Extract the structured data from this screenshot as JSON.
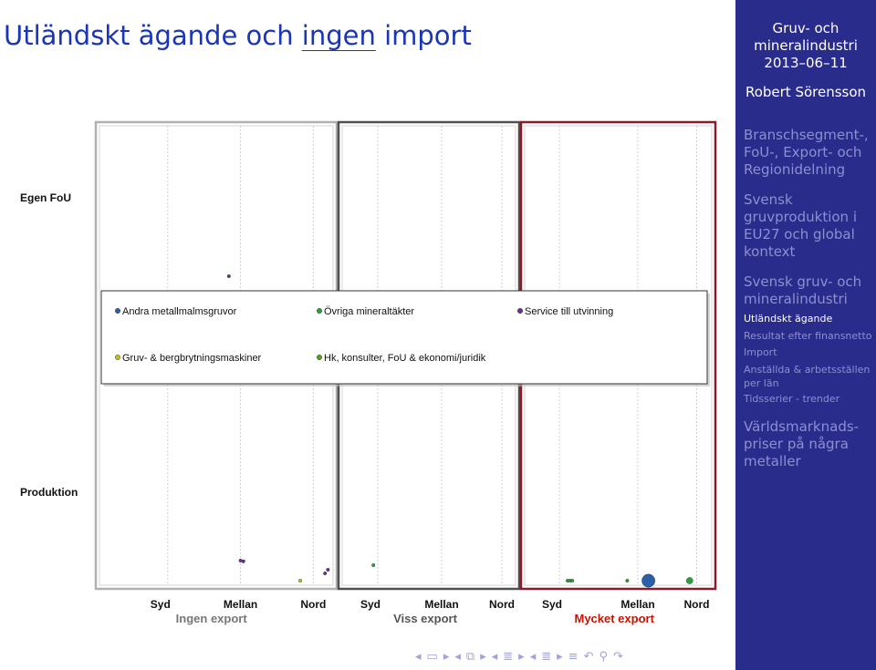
{
  "title": {
    "part1": "Utländskt ägande och ",
    "underlined": "ingen",
    "part2": " import"
  },
  "sidebar": {
    "header_line1": "Gruv- och",
    "header_line2": "mineralindustri",
    "header_date": "2013–06–11",
    "author": "Robert Sörensson",
    "sections": [
      {
        "lines": [
          "Branschsegment-,",
          "FoU-, Export- och",
          "Regionidelning"
        ]
      },
      {
        "lines": [
          "Svensk",
          "gruvproduktion i",
          "EU27 och global",
          "kontext"
        ]
      },
      {
        "lines": [
          "Svensk gruv- och",
          "mineralindustri"
        ]
      },
      {
        "lines": [
          "Världsmarknads-",
          "priser på några",
          "metaller"
        ]
      }
    ],
    "subitems": [
      {
        "lines": [
          "Utländskt ägande"
        ],
        "active": true
      },
      {
        "lines": [
          "Resultat efter finansnetto"
        ],
        "active": false
      },
      {
        "lines": [
          "Import"
        ],
        "active": false
      },
      {
        "lines": [
          "Anställda & arbetsställen",
          "per län"
        ],
        "active": false
      },
      {
        "lines": [
          "Tidsserier - trender"
        ],
        "active": false
      }
    ]
  },
  "nav_icons": [
    "frame-prev-icon",
    "frame-icon",
    "frame-next-icon",
    "subsection-prev-icon",
    "subsection-icon",
    "subsection-next-icon",
    "section-prev-icon",
    "section-icon",
    "section-next-icon",
    "slide-prev-icon",
    "slide-icon",
    "slide-next-icon",
    "align-icon",
    "undo-icon",
    "search-icon",
    "redo-icon"
  ],
  "colors": {
    "sidebar_bg": "#2a2c8c",
    "title": "#1a35b5",
    "panel1_border": "#b0b0b0",
    "panel2_border": "#505050",
    "panel3_border": "#8b1a2a",
    "panel3_label": "#cc1100"
  },
  "chart_data": {
    "type": "scatter",
    "row_labels": {
      "top": "Egen FoU",
      "bottom": "Produktion"
    },
    "panels": [
      {
        "label": "Ingen export",
        "categories": [
          "Syd",
          "Mellan",
          "Nord"
        ]
      },
      {
        "label": "Viss export",
        "categories": [
          "Syd",
          "Mellan",
          "Nord"
        ]
      },
      {
        "label": "Mycket export",
        "categories": [
          "Syd",
          "Mellan",
          "Nord"
        ]
      }
    ],
    "legend": {
      "placement": "center",
      "items": [
        {
          "name": "Andra metallmalmsgruvor",
          "color": "#2b5fa8"
        },
        {
          "name": "Övriga mineraltäkter",
          "color": "#2aa03a"
        },
        {
          "name": "Service till utvinning",
          "color": "#6a2f90"
        },
        {
          "name": "Gruv- & bergbrytningsmaskiner",
          "color": "#b8c020"
        },
        {
          "name": "Hk, konsulter, FoU & ekonomi/juridik",
          "color": "#5aa020"
        }
      ]
    },
    "points": [
      {
        "panel": 0,
        "cat": 1,
        "row": "top",
        "offset": 0.1,
        "series": "Service till utvinning",
        "size": 1
      },
      {
        "panel": 0,
        "cat": 1,
        "row": "bottom",
        "offset": 0.5,
        "series": "Service till utvinning",
        "size": 1
      },
      {
        "panel": 0,
        "cat": 1,
        "row": "bottom",
        "offset": 0.6,
        "series": "Service till utvinning",
        "size": 1
      },
      {
        "panel": 0,
        "cat": 2,
        "row": "bottom",
        "offset": 0.05,
        "series": "Gruv- & bergbrytningsmaskiner",
        "size": 1
      },
      {
        "panel": 0,
        "cat": 2,
        "row": "bottom",
        "offset": 0.9,
        "series": "Service till utvinning",
        "size": 1
      },
      {
        "panel": 0,
        "cat": 2,
        "row": "bottom",
        "offset": 1.0,
        "series": "Service till utvinning",
        "size": 1
      },
      {
        "panel": 1,
        "cat": 0,
        "row": "bottom",
        "offset": 0.3,
        "series": "Övriga mineraltäkter",
        "size": 1
      },
      {
        "panel": 2,
        "cat": 0,
        "row": "bottom",
        "offset": 0.85,
        "series": "Övriga mineraltäkter",
        "size": 1
      },
      {
        "panel": 2,
        "cat": 0,
        "row": "bottom",
        "offset": 0.95,
        "series": "Övriga mineraltäkter",
        "size": 1
      },
      {
        "panel": 2,
        "cat": 0,
        "row": "bottom",
        "offset": 1.05,
        "series": "Övriga mineraltäkter",
        "size": 1
      },
      {
        "panel": 2,
        "cat": 1,
        "row": "bottom",
        "offset": 0.05,
        "series": "Övriga mineraltäkter",
        "size": 1
      },
      {
        "panel": 2,
        "cat": 1,
        "row": "bottom",
        "offset": 0.95,
        "series": "Andra metallmalmsgruvor",
        "size": 4
      },
      {
        "panel": 2,
        "cat": 2,
        "row": "bottom",
        "offset": 0.2,
        "series": "Övriga mineraltäkter",
        "size": 2
      }
    ]
  }
}
